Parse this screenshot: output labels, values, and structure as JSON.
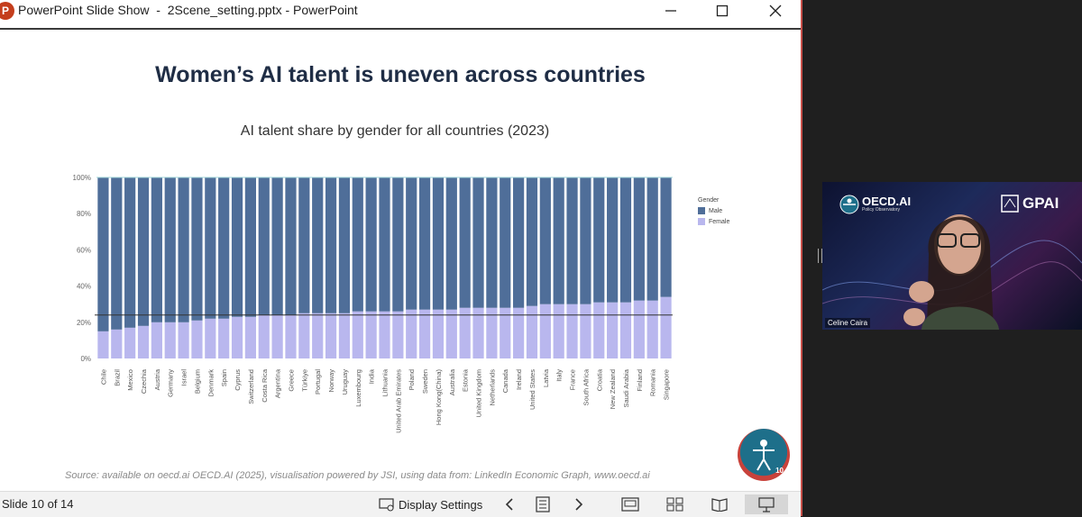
{
  "window": {
    "app_title": "PowerPoint Slide Show  -  2Scene_setting.pptx - PowerPoint",
    "minimize_label": "—",
    "close_label": "✕",
    "icon_letter": "P"
  },
  "slide": {
    "title": "Women’s AI talent is uneven across countries",
    "source": "Source: available on oecd.ai OECD.AI (2025), visualisation powered by JSI, using data from: LinkedIn Economic Graph, www.oecd.ai",
    "page_number": "10"
  },
  "chart_data": {
    "type": "bar",
    "stacked": true,
    "title": "AI talent share by gender for all countries (2023)",
    "xlabel": "",
    "ylabel": "",
    "ylim": [
      0,
      100
    ],
    "yticks": [
      "0%",
      "20%",
      "40%",
      "60%",
      "80%",
      "100%"
    ],
    "reference_line": 24,
    "legend_title": "Gender",
    "categories": [
      "Chile",
      "Brazil",
      "Mexico",
      "Czechia",
      "Austria",
      "Germany",
      "Israel",
      "Belgium",
      "Denmark",
      "Spain",
      "Cyprus",
      "Switzerland",
      "Costa Rica",
      "Argentina",
      "Greece",
      "Türkiye",
      "Portugal",
      "Norway",
      "Uruguay",
      "Luxembourg",
      "India",
      "Lithuania",
      "United Arab Emirates",
      "Poland",
      "Sweden",
      "Hong Kong(China)",
      "Australia",
      "Estonia",
      "United Kingdom",
      "Netherlands",
      "Canada",
      "Ireland",
      "United States",
      "Latvia",
      "Italy",
      "France",
      "South Africa",
      "Croatia",
      "New Zealand",
      "Saudi Arabia",
      "Finland",
      "Romania",
      "Singapore"
    ],
    "series": [
      {
        "name": "Male",
        "color": "#4f6e99",
        "values": [
          85,
          84,
          83,
          82,
          80,
          80,
          80,
          79,
          78,
          78,
          77,
          77,
          76,
          76,
          76,
          75,
          75,
          75,
          75,
          74,
          74,
          74,
          74,
          73,
          73,
          73,
          73,
          72,
          72,
          72,
          72,
          72,
          71,
          70,
          70,
          70,
          70,
          69,
          69,
          69,
          68,
          68,
          66
        ]
      },
      {
        "name": "Female",
        "color": "#b9b7ee",
        "values": [
          15,
          16,
          17,
          18,
          20,
          20,
          20,
          21,
          22,
          22,
          23,
          23,
          24,
          24,
          24,
          25,
          25,
          25,
          25,
          26,
          26,
          26,
          26,
          27,
          27,
          27,
          27,
          28,
          28,
          28,
          28,
          28,
          29,
          30,
          30,
          30,
          30,
          31,
          31,
          31,
          32,
          32,
          34
        ]
      }
    ]
  },
  "status": {
    "slide_count": "Slide 10 of 14",
    "display_settings": "Display Settings"
  },
  "video": {
    "participant": "Celine Caira",
    "oecd_logo": "OECD.AI",
    "oecd_sub": "Policy Observatory",
    "gpai_logo": "GPAI"
  }
}
